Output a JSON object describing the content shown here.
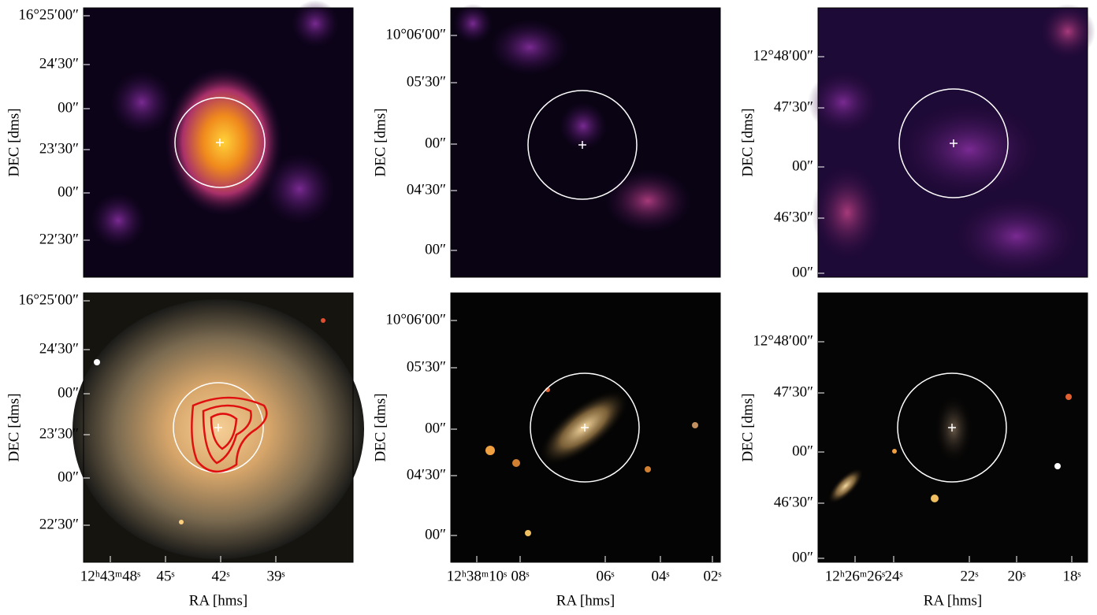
{
  "panels": [
    {
      "ylabel": "DEC [dms]",
      "yticks": [
        "16°25′00″",
        "24′30″",
        "00″",
        "23′30″",
        "00″",
        "22′30″"
      ]
    },
    {
      "ylabel": "DEC [dms]",
      "yticks": [
        "10°06′00″",
        "05′30″",
        "00″",
        "04′30″",
        "00″"
      ]
    },
    {
      "ylabel": "DEC [dms]",
      "yticks": [
        "12°48′00″",
        "47′30″",
        "00″",
        "46′30″",
        "00″"
      ]
    },
    {
      "ylabel": "DEC [dms]",
      "yticks": [
        "16°25′00″",
        "24′30″",
        "00″",
        "23′30″",
        "00″",
        "22′30″"
      ],
      "xlabel": "RA [hms]",
      "xticks": [
        "12ʰ43ᵐ48ˢ",
        "45ˢ",
        "42ˢ",
        "39ˢ"
      ]
    },
    {
      "ylabel": "DEC [dms]",
      "yticks": [
        "10°06′00″",
        "05′30″",
        "00″",
        "04′30″",
        "00″"
      ],
      "xlabel": "RA [hms]",
      "xticks": [
        "12ʰ38ᵐ10ˢ",
        "08ˢ",
        "06ˢ",
        "04ˢ",
        "02ˢ"
      ]
    },
    {
      "ylabel": "DEC [dms]",
      "yticks": [
        "12°48′00″",
        "47′30″",
        "00″",
        "46′30″",
        "00″"
      ],
      "xlabel": "RA [hms]",
      "xticks": [
        "12ʰ26ᵐ26ˢ",
        "24ˢ",
        "22ˢ",
        "20ˢ",
        "18ˢ"
      ]
    }
  ]
}
